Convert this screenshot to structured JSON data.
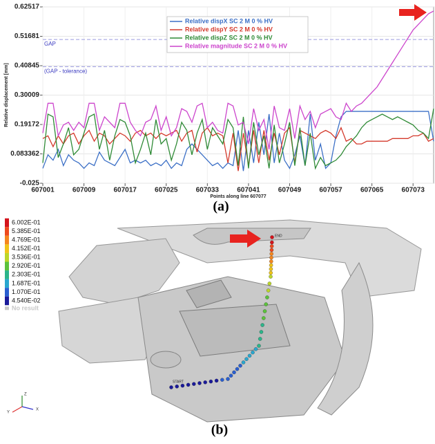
{
  "chart_data": {
    "type": "line",
    "y_label": "Relative displacement [mm]",
    "x_label": "Points along line 607077",
    "x": [
      607001,
      607002,
      607003,
      607004,
      607005,
      607006,
      607007,
      607008,
      607009,
      607010,
      607011,
      607012,
      607013,
      607014,
      607015,
      607016,
      607017,
      607018,
      607019,
      607020,
      607021,
      607022,
      607023,
      607024,
      607025,
      607026,
      607027,
      607028,
      607029,
      607030,
      607031,
      607032,
      607033,
      607034,
      607035,
      607036,
      607037,
      607038,
      607039,
      607040,
      607041,
      607042,
      607043,
      607044,
      607045,
      607046,
      607047,
      607048,
      607049,
      607050,
      607051,
      607052,
      607053,
      607054,
      607055,
      607056,
      607057,
      607058,
      607059,
      607060,
      607061,
      607062,
      607063,
      607064,
      607065,
      607066,
      607067,
      607068,
      607069,
      607070,
      607071,
      607072,
      607073,
      607074,
      607075,
      607076,
      607077
    ],
    "series": [
      {
        "name": "Relative dispX SC 2 M 0 % HV",
        "color": "#3b6fc6",
        "values": [
          0.03,
          0.08,
          0.06,
          0.1,
          0.04,
          0.08,
          0.06,
          0.05,
          0.03,
          0.05,
          0.04,
          0.09,
          0.06,
          0.05,
          0.04,
          0.07,
          0.1,
          0.05,
          0.06,
          0.05,
          0.06,
          0.04,
          0.05,
          0.04,
          0.06,
          0.03,
          0.05,
          0.04,
          0.1,
          0.12,
          0.1,
          0.08,
          0.06,
          0.04,
          0.05,
          0.03,
          0.05,
          0.04,
          0.17,
          0.02,
          0.17,
          0.05,
          0.2,
          0.08,
          0.23,
          0.05,
          0.16,
          0.06,
          0.03,
          0.08,
          0.15,
          0.04,
          0.23,
          0.06,
          0.12,
          0.03,
          0.05,
          0.15,
          0.22,
          0.24,
          0.24,
          0.24,
          0.24,
          0.24,
          0.24,
          0.24,
          0.24,
          0.24,
          0.24,
          0.24,
          0.24,
          0.24,
          0.24,
          0.24,
          0.24,
          0.24,
          0.13
        ]
      },
      {
        "name": "Relative dispY SC 2 M 0 % HV",
        "color": "#d4392b",
        "values": [
          0.14,
          0.15,
          0.11,
          0.15,
          0.12,
          0.15,
          0.16,
          0.12,
          0.15,
          0.17,
          0.13,
          0.16,
          0.15,
          0.12,
          0.14,
          0.16,
          0.15,
          0.13,
          0.16,
          0.17,
          0.15,
          0.16,
          0.14,
          0.16,
          0.15,
          0.16,
          0.17,
          0.13,
          0.16,
          0.17,
          0.09,
          0.16,
          0.18,
          0.15,
          0.16,
          0.15,
          0.05,
          0.16,
          0.02,
          0.16,
          0.04,
          0.17,
          0.05,
          0.17,
          0.06,
          0.16,
          0.08,
          0.16,
          0.18,
          0.05,
          0.17,
          0.16,
          0.15,
          0.14,
          0.16,
          0.17,
          0.16,
          0.14,
          0.18,
          0.13,
          0.14,
          0.12,
          0.12,
          0.13,
          0.13,
          0.13,
          0.13,
          0.13,
          0.14,
          0.14,
          0.14,
          0.14,
          0.15,
          0.15,
          0.16,
          0.13,
          0.14
        ]
      },
      {
        "name": "Relative dispZ SC 2 M 0 % HV",
        "color": "#2e8a35",
        "values": [
          0.05,
          0.23,
          0.22,
          0.07,
          0.12,
          0.18,
          0.08,
          0.1,
          0.16,
          0.22,
          0.23,
          0.1,
          0.17,
          0.06,
          0.15,
          0.21,
          0.2,
          0.15,
          0.05,
          0.1,
          0.16,
          0.08,
          0.21,
          0.12,
          0.14,
          0.06,
          0.12,
          0.2,
          0.17,
          0.08,
          0.16,
          0.21,
          0.1,
          0.18,
          0.15,
          0.12,
          0.21,
          0.18,
          0.04,
          0.22,
          0.03,
          0.2,
          0.08,
          0.15,
          0.03,
          0.19,
          0.05,
          0.12,
          0.2,
          0.04,
          0.18,
          0.04,
          0.16,
          0.03,
          0.07,
          0.04,
          0.05,
          0.06,
          0.08,
          0.11,
          0.13,
          0.15,
          0.18,
          0.2,
          0.21,
          0.22,
          0.23,
          0.22,
          0.21,
          0.22,
          0.21,
          0.2,
          0.19,
          0.17,
          0.16,
          0.14,
          0.25
        ]
      },
      {
        "name": "Relative magnitude SC 2 M 0 % HV",
        "color": "#cc44cc",
        "values": [
          0.16,
          0.27,
          0.27,
          0.15,
          0.19,
          0.2,
          0.17,
          0.2,
          0.18,
          0.27,
          0.27,
          0.17,
          0.22,
          0.2,
          0.18,
          0.27,
          0.27,
          0.2,
          0.17,
          0.15,
          0.2,
          0.21,
          0.26,
          0.17,
          0.22,
          0.15,
          0.18,
          0.25,
          0.24,
          0.2,
          0.26,
          0.27,
          0.18,
          0.2,
          0.17,
          0.16,
          0.27,
          0.26,
          0.19,
          0.2,
          0.12,
          0.25,
          0.17,
          0.21,
          0.1,
          0.26,
          0.18,
          0.17,
          0.25,
          0.14,
          0.26,
          0.21,
          0.24,
          0.18,
          0.23,
          0.24,
          0.25,
          0.22,
          0.21,
          0.27,
          0.24,
          0.26,
          0.27,
          0.29,
          0.31,
          0.33,
          0.36,
          0.39,
          0.42,
          0.45,
          0.48,
          0.51,
          0.54,
          0.56,
          0.58,
          0.6,
          0.61
        ]
      }
    ],
    "reference_lines": [
      {
        "label": "GAP",
        "value": 0.505,
        "color": "#9a9ae0"
      },
      {
        "label": "(GAP - tolerance)",
        "value": 0.405,
        "color": "#9a9ae0"
      }
    ],
    "xlim": [
      607001,
      607077
    ],
    "xticks": [
      607001,
      607009,
      607017,
      607025,
      607033,
      607041,
      607049,
      607057,
      607065,
      607073
    ],
    "ylim": [
      -0.025,
      0.62517
    ],
    "yticks": [
      -0.025,
      0.083362,
      0.19172,
      0.30009,
      0.40845,
      0.51681,
      0.62517
    ],
    "grid": true,
    "legend": "top"
  },
  "caption_a": "(a)",
  "contour_plot": {
    "scale": [
      {
        "value": 0.6002,
        "label": "6.002E-01",
        "color": "#d4141c"
      },
      {
        "value": 0.5385,
        "label": "5.385E-01",
        "color": "#ee4a1e"
      },
      {
        "value": 0.4769,
        "label": "4.769E-01",
        "color": "#f5861f"
      },
      {
        "value": 0.4152,
        "label": "4.152E-01",
        "color": "#f0c419"
      },
      {
        "value": 0.3536,
        "label": "3.536E-01",
        "color": "#bcd62a"
      },
      {
        "value": 0.292,
        "label": "2.920E-01",
        "color": "#5cc23c"
      },
      {
        "value": 0.2303,
        "label": "2.303E-01",
        "color": "#2bb58a"
      },
      {
        "value": 0.1687,
        "label": "1.687E-01",
        "color": "#29a7cf"
      },
      {
        "value": 0.107,
        "label": "1.070E-01",
        "color": "#2a5fd0"
      },
      {
        "value": 0.0454,
        "label": "4.540E-02",
        "color": "#1a1a9a"
      }
    ],
    "no_result": "No result",
    "start_label": "START",
    "end_label": "END",
    "axes": [
      "Z",
      "Y",
      "X"
    ]
  },
  "caption_b": "(b)"
}
